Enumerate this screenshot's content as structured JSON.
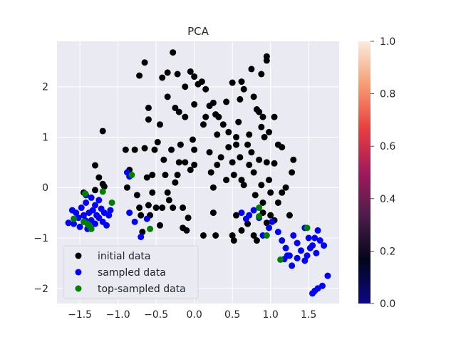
{
  "chart_data": {
    "type": "scatter",
    "title": "PCA",
    "xlim": [
      -1.8,
      1.9
    ],
    "ylim": [
      -2.3,
      2.9
    ],
    "xticks": [
      -1.5,
      -1.0,
      -0.5,
      0.0,
      0.5,
      1.0,
      1.5
    ],
    "xtick_labels": [
      "−1.5",
      "−1.0",
      "−0.5",
      "0.0",
      "0.5",
      "1.0",
      "1.5"
    ],
    "yticks": [
      -2,
      -1,
      0,
      1,
      2
    ],
    "ytick_labels": [
      "−2",
      "−1",
      "0",
      "1",
      "2"
    ],
    "grid": true,
    "legend_position": "lower-left",
    "series": [
      {
        "name": "initial data",
        "color": "#000000",
        "points": [
          [
            -1.2,
            1.12
          ],
          [
            -1.3,
            0.44
          ],
          [
            -1.25,
            0.2
          ],
          [
            -1.2,
            0.07
          ],
          [
            -1.3,
            -0.05
          ],
          [
            -1.45,
            -0.1
          ],
          [
            -1.18,
            0.02
          ],
          [
            -0.9,
            0.75
          ],
          [
            -0.88,
            0.0
          ],
          [
            -0.85,
            0.35
          ],
          [
            -0.78,
            0.75
          ],
          [
            -0.75,
            -0.15
          ],
          [
            -0.72,
            -0.4
          ],
          [
            -0.7,
            -0.55
          ],
          [
            -0.68,
            -0.88
          ],
          [
            -0.65,
            0.78
          ],
          [
            -0.62,
            0.2
          ],
          [
            -0.6,
            -0.35
          ],
          [
            -0.58,
            -0.55
          ],
          [
            -0.55,
            0.25
          ],
          [
            -0.55,
            -0.1
          ],
          [
            -0.52,
            0.75
          ],
          [
            -0.5,
            -0.4
          ],
          [
            -0.48,
            0.9
          ],
          [
            -0.45,
            -0.75
          ],
          [
            -0.42,
            -0.4
          ],
          [
            -0.4,
            0.55
          ],
          [
            -0.38,
            0.25
          ],
          [
            -0.35,
            -0.1
          ],
          [
            -0.33,
            -0.25
          ],
          [
            -0.3,
            0.75
          ],
          [
            -0.28,
            -0.4
          ],
          [
            -0.25,
            0.1
          ],
          [
            -0.22,
            0.25
          ],
          [
            -0.2,
            0.5
          ],
          [
            -0.18,
            0.85
          ],
          [
            -0.15,
            -0.8
          ],
          [
            -0.12,
            0.5
          ],
          [
            -0.1,
            -0.85
          ],
          [
            -0.08,
            -0.6
          ],
          [
            -0.05,
            0.35
          ],
          [
            -0.02,
            0.95
          ],
          [
            0.0,
            0.45
          ],
          [
            -0.6,
            1.58
          ],
          [
            -0.6,
            1.35
          ],
          [
            -0.45,
            1.25
          ],
          [
            -0.35,
            1.8
          ],
          [
            -0.25,
            1.58
          ],
          [
            -0.2,
            1.5
          ],
          [
            -0.12,
            1.4
          ],
          [
            0.0,
            1.65
          ],
          [
            -0.72,
            2.22
          ],
          [
            -0.65,
            2.48
          ],
          [
            -0.42,
            2.18
          ],
          [
            -0.35,
            2.28
          ],
          [
            -0.28,
            2.68
          ],
          [
            -0.22,
            2.25
          ],
          [
            -0.12,
            2.0
          ],
          [
            -0.05,
            2.3
          ],
          [
            0.0,
            2.2
          ],
          [
            0.05,
            2.05
          ],
          [
            0.1,
            2.1
          ],
          [
            0.15,
            1.95
          ],
          [
            0.2,
            1.62
          ],
          [
            0.25,
            1.68
          ],
          [
            0.15,
            1.4
          ],
          [
            0.12,
            1.25
          ],
          [
            0.28,
            1.45
          ],
          [
            0.3,
            1.05
          ],
          [
            0.32,
            1.4
          ],
          [
            0.38,
            1.25
          ],
          [
            0.42,
            1.7
          ],
          [
            0.45,
            1.1
          ],
          [
            0.5,
            2.08
          ],
          [
            0.55,
            1.0
          ],
          [
            0.58,
            1.3
          ],
          [
            0.6,
            1.75
          ],
          [
            0.62,
            2.1
          ],
          [
            0.65,
            1.95
          ],
          [
            0.72,
            1.05
          ],
          [
            0.75,
            2.35
          ],
          [
            0.78,
            1.8
          ],
          [
            0.82,
            1.55
          ],
          [
            0.85,
            1.5
          ],
          [
            0.88,
            1.2
          ],
          [
            0.9,
            1.4
          ],
          [
            0.92,
            1.0
          ],
          [
            0.95,
            2.6
          ],
          [
            0.98,
            1.1
          ],
          [
            1.05,
            1.4
          ],
          [
            1.1,
            0.85
          ],
          [
            1.15,
            0.8
          ],
          [
            1.3,
            0.55
          ],
          [
            1.28,
            0.3
          ],
          [
            0.95,
            2.52
          ],
          [
            0.88,
            2.25
          ],
          [
            0.2,
            0.7
          ],
          [
            0.22,
            0.3
          ],
          [
            0.25,
            0.0
          ],
          [
            0.3,
            0.45
          ],
          [
            0.35,
            0.6
          ],
          [
            0.42,
            0.15
          ],
          [
            0.45,
            0.8
          ],
          [
            0.5,
            0.5
          ],
          [
            0.52,
            0.25
          ],
          [
            0.55,
            0.85
          ],
          [
            0.6,
            0.6
          ],
          [
            0.62,
            0.15
          ],
          [
            0.65,
            0.05
          ],
          [
            0.7,
            0.85
          ],
          [
            0.72,
            0.45
          ],
          [
            0.75,
            0.7
          ],
          [
            0.78,
            0.3
          ],
          [
            0.8,
            -0.15
          ],
          [
            0.85,
            0.55
          ],
          [
            0.88,
            0.05
          ],
          [
            0.9,
            -0.3
          ],
          [
            0.95,
            0.5
          ],
          [
            0.98,
            0.15
          ],
          [
            1.0,
            -0.1
          ],
          [
            1.05,
            0.48
          ],
          [
            1.1,
            -0.3
          ],
          [
            1.15,
            -0.1
          ],
          [
            1.2,
            0.0
          ],
          [
            1.25,
            -0.55
          ],
          [
            0.55,
            -0.55
          ],
          [
            0.62,
            -0.85
          ],
          [
            0.7,
            -0.72
          ],
          [
            0.78,
            -0.95
          ],
          [
            0.82,
            -1.05
          ],
          [
            0.9,
            -0.5
          ],
          [
            0.95,
            -0.7
          ],
          [
            1.0,
            -0.55
          ],
          [
            1.05,
            -0.65
          ],
          [
            0.5,
            -0.95
          ],
          [
            0.52,
            -1.05
          ],
          [
            0.25,
            -0.5
          ],
          [
            0.28,
            -0.95
          ],
          [
            0.12,
            -0.95
          ],
          [
            -0.15,
            -0.4
          ],
          [
            0.0,
            0.75
          ]
        ]
      },
      {
        "name": "sampled data",
        "color": "#0000ff",
        "points": [
          [
            -1.65,
            -0.7
          ],
          [
            -1.6,
            -0.45
          ],
          [
            -1.58,
            -0.72
          ],
          [
            -1.55,
            -0.5
          ],
          [
            -1.52,
            -0.6
          ],
          [
            -1.5,
            -0.78
          ],
          [
            -1.48,
            -0.4
          ],
          [
            -1.45,
            -0.55
          ],
          [
            -1.43,
            -0.65
          ],
          [
            -1.42,
            -0.3
          ],
          [
            -1.4,
            -0.82
          ],
          [
            -1.38,
            -0.5
          ],
          [
            -1.35,
            -0.65
          ],
          [
            -1.33,
            -0.45
          ],
          [
            -1.3,
            -0.72
          ],
          [
            -1.28,
            -0.55
          ],
          [
            -1.25,
            -0.6
          ],
          [
            -1.22,
            -0.42
          ],
          [
            -1.2,
            -0.68
          ],
          [
            -1.18,
            -0.5
          ],
          [
            -1.15,
            -0.75
          ],
          [
            -1.12,
            -0.55
          ],
          [
            -1.1,
            -0.45
          ],
          [
            -1.42,
            -0.15
          ],
          [
            -1.35,
            -0.2
          ],
          [
            -1.3,
            -0.35
          ],
          [
            -1.25,
            -0.25
          ],
          [
            -0.88,
            0.3
          ],
          [
            -0.85,
            -0.5
          ],
          [
            -0.78,
            -0.68
          ],
          [
            -0.7,
            -0.98
          ],
          [
            -0.62,
            -0.62
          ],
          [
            -0.85,
            0.22
          ],
          [
            0.62,
            -0.5
          ],
          [
            0.68,
            -0.62
          ],
          [
            0.72,
            -0.55
          ],
          [
            0.78,
            -0.45
          ],
          [
            0.85,
            -0.6
          ],
          [
            0.9,
            -0.95
          ],
          [
            0.98,
            -0.8
          ],
          [
            1.02,
            -0.68
          ],
          [
            1.1,
            -0.88
          ],
          [
            1.15,
            -1.05
          ],
          [
            1.2,
            -1.2
          ],
          [
            1.25,
            -1.35
          ],
          [
            1.3,
            -0.95
          ],
          [
            1.35,
            -1.1
          ],
          [
            1.4,
            -1.25
          ],
          [
            1.45,
            -0.8
          ],
          [
            1.5,
            -1.0
          ],
          [
            1.55,
            -1.15
          ],
          [
            1.6,
            -1.3
          ],
          [
            1.65,
            -1.05
          ],
          [
            1.7,
            -1.15
          ],
          [
            1.75,
            -1.75
          ],
          [
            1.58,
            -2.05
          ],
          [
            1.55,
            -2.1
          ],
          [
            1.62,
            -2.0
          ],
          [
            1.68,
            -1.95
          ],
          [
            1.48,
            -1.35
          ],
          [
            1.35,
            -1.4
          ],
          [
            1.22,
            -1.35
          ],
          [
            1.28,
            -1.55
          ],
          [
            1.18,
            -1.42
          ],
          [
            1.45,
            -1.45
          ],
          [
            1.52,
            -1.2
          ],
          [
            1.58,
            -1.0
          ],
          [
            1.62,
            -0.85
          ]
        ]
      },
      {
        "name": "top-sampled data",
        "color": "#008000",
        "points": [
          [
            -1.43,
            -0.12
          ],
          [
            -1.58,
            -0.62
          ],
          [
            -1.45,
            -0.68
          ],
          [
            -1.38,
            -0.75
          ],
          [
            -1.35,
            -0.82
          ],
          [
            -1.4,
            -0.72
          ],
          [
            -1.2,
            -0.08
          ],
          [
            -1.08,
            -0.3
          ],
          [
            -0.82,
            0.25
          ],
          [
            -0.58,
            -0.82
          ],
          [
            0.85,
            -0.4
          ],
          [
            0.85,
            -0.57
          ],
          [
            0.95,
            -0.95
          ],
          [
            1.13,
            -1.43
          ],
          [
            1.48,
            -0.8
          ]
        ]
      }
    ],
    "colorbar": {
      "range": [
        0.0,
        1.0
      ],
      "ticks": [
        0.0,
        0.2,
        0.4,
        0.6,
        0.8,
        1.0
      ],
      "tick_labels": [
        "0.0",
        "0.2",
        "0.4",
        "0.6",
        "0.8",
        "1.0"
      ],
      "colormap": [
        "#0d0887",
        "#03051a",
        "#4c1d4b",
        "#a11a5b",
        "#e83f3f",
        "#f69c73",
        "#faebdd"
      ]
    }
  }
}
